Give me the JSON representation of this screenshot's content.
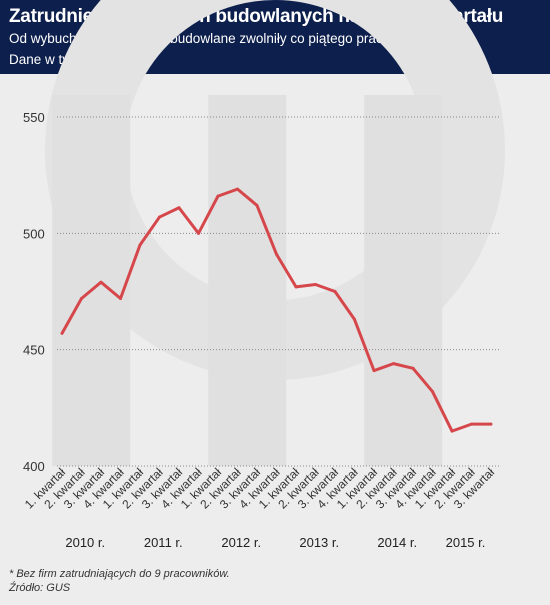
{
  "header": {
    "title": "Zatrudnienie w firmach budowlanych na koniec kwartału",
    "subtitle": "Od wybuchu kryzysu firmy budowlane zwolniły co piątego pracownika",
    "note": "Dane w tys.*"
  },
  "footer": {
    "footnote": "* Bez firm zatrudniających do 9 pracowników.",
    "source": "Źródło: GUS"
  },
  "colors": {
    "header_bg": "#0d1f4d",
    "line": "#d6474b",
    "band": "#e0e0e0",
    "background": "#ededed"
  },
  "chart_data": {
    "type": "line",
    "ylim": [
      400,
      550
    ],
    "yticks": [
      400,
      450,
      500,
      550
    ],
    "categories": [
      "1. kwartał",
      "2. kwartał",
      "3. kwartał",
      "4. kwartał",
      "1. kwartał",
      "2. kwartał",
      "3. kwartał",
      "4. kwartał",
      "1. kwartał",
      "2. kwartał",
      "3. kwartał",
      "4. kwartał",
      "1. kwartał",
      "2. kwartał",
      "3. kwartał",
      "4. kwartał",
      "1. kwartał",
      "2. kwartał",
      "3. kwartał",
      "4. kwartał",
      "1. kwartał",
      "2. kwartał",
      "3. kwartał"
    ],
    "years": [
      {
        "label": "2010 r.",
        "start": 0,
        "end": 3
      },
      {
        "label": "2011 r.",
        "start": 4,
        "end": 7
      },
      {
        "label": "2012 r.",
        "start": 8,
        "end": 11
      },
      {
        "label": "2013 r.",
        "start": 12,
        "end": 15
      },
      {
        "label": "2014 r.",
        "start": 16,
        "end": 19
      },
      {
        "label": "2015 r.",
        "start": 20,
        "end": 22
      }
    ],
    "values": [
      457,
      472,
      479,
      472,
      495,
      507,
      511,
      500,
      516,
      519,
      512,
      491,
      477,
      478,
      475,
      463,
      441,
      444,
      442,
      432,
      415,
      418,
      418
    ],
    "grid": true
  }
}
